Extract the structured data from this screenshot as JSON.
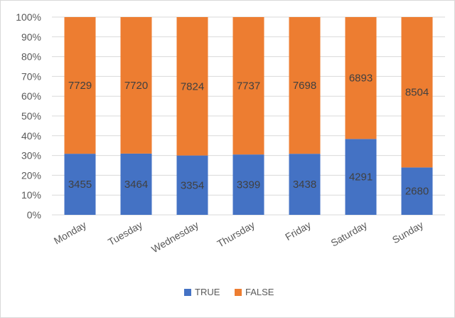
{
  "chart_data": {
    "type": "bar",
    "stacked": "percent",
    "categories": [
      "Monday",
      "Tuesday",
      "Wednesday",
      "Thursday",
      "Friday",
      "Saturday",
      "Sunday"
    ],
    "series": [
      {
        "name": "TRUE",
        "color": "#4472c4",
        "values": [
          3455,
          3464,
          3354,
          3399,
          3438,
          4291,
          2680
        ]
      },
      {
        "name": "FALSE",
        "color": "#ed7d31",
        "values": [
          7729,
          7720,
          7824,
          7737,
          7698,
          6893,
          8504
        ]
      }
    ],
    "y_ticks": [
      "0%",
      "10%",
      "20%",
      "30%",
      "40%",
      "50%",
      "60%",
      "70%",
      "80%",
      "90%",
      "100%"
    ],
    "ylim": [
      0,
      100
    ],
    "grid": true,
    "legend_position": "bottom"
  }
}
